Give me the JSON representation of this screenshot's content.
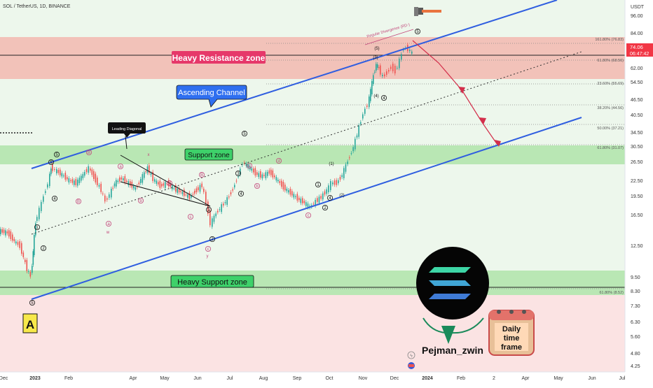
{
  "header": {
    "symbol_title": "SOL / TetherUS, 1D, BINANCE"
  },
  "price_axis": {
    "currency": "USDT",
    "ticks": [
      "96.00",
      "84.00",
      "62.00",
      "54.50",
      "46.50",
      "40.50",
      "34.50",
      "30.50",
      "26.50",
      "22.50",
      "19.50",
      "16.50",
      "12.50",
      "9.50",
      "8.30",
      "7.30",
      "6.30",
      "5.60",
      "4.80",
      "4.25"
    ],
    "current_price": "74.06",
    "countdown": "06:47:42"
  },
  "time_axis": {
    "labels": [
      "Dec",
      "2023",
      "Feb",
      "Apr",
      "May",
      "Jun",
      "Jul",
      "Aug",
      "Sep",
      "Oct",
      "Nov",
      "Dec",
      "2024",
      "Feb",
      "2",
      "Apr",
      "May",
      "Jun",
      "Jul"
    ]
  },
  "zones": {
    "heavy_resistance": "Heavy Resistance zone",
    "support": "Support zone",
    "heavy_support": "Heavy Support zone"
  },
  "callouts": {
    "ascending_channel": "Ascending Channel",
    "leading_diagonal": "Leading Diagonal",
    "regular_divergence": "Regular Divergence (RD-)"
  },
  "fib_levels": [
    {
      "label": "161.80% (76.83)"
    },
    {
      "label": "61.80% (68.56)"
    },
    {
      "label": "23.60% (55.69)"
    },
    {
      "label": "38.20% (44.56)"
    },
    {
      "label": "50.00% (37.21)"
    },
    {
      "label": "61.80% (31.07)"
    },
    {
      "label": "61.80% (8.52)"
    }
  ],
  "wave_labels": [
    "5",
    "A",
    "1",
    "2",
    "3",
    "4",
    "5",
    "B",
    "x",
    "w",
    "y",
    "a",
    "b",
    "c",
    "d",
    "e",
    "(1)",
    "(2)",
    "(3)",
    "(4)",
    "(5)"
  ],
  "branding": {
    "author": "Pejman_zwin",
    "badge_line1": "Daily",
    "badge_line2": "time",
    "badge_line3": "frame"
  },
  "colors": {
    "resistance_zone": "#f2b8b0",
    "support_zone": "#b9e7b4",
    "channel": "#2f5ee0",
    "bull": "#26a69a",
    "bear": "#ef5350",
    "projection": "#d32f4b"
  },
  "chart_data": {
    "type": "candlestick",
    "title": "SOL / TetherUS, 1D, BINANCE",
    "axis": "log",
    "ylim": [
      4.1,
      110
    ],
    "last_price": 74.06
  }
}
